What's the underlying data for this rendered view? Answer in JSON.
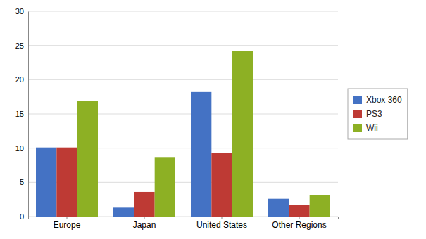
{
  "chart_data": {
    "type": "bar",
    "categories": [
      "Europe",
      "Japan",
      "United States",
      "Other Regions"
    ],
    "series": [
      {
        "name": "Xbox 360",
        "color": "#4472C4",
        "values": [
          10.1,
          1.3,
          18.2,
          2.6
        ]
      },
      {
        "name": "PS3",
        "color": "#BE3A34",
        "values": [
          10.1,
          3.6,
          9.3,
          1.7
        ]
      },
      {
        "name": "Wii",
        "color": "#8DB024",
        "values": [
          16.9,
          8.6,
          24.2,
          3.1
        ]
      }
    ],
    "ylim": [
      0,
      30
    ],
    "yticks": [
      0,
      5,
      10,
      15,
      20,
      25,
      30
    ],
    "grid": true,
    "legend": "right"
  }
}
